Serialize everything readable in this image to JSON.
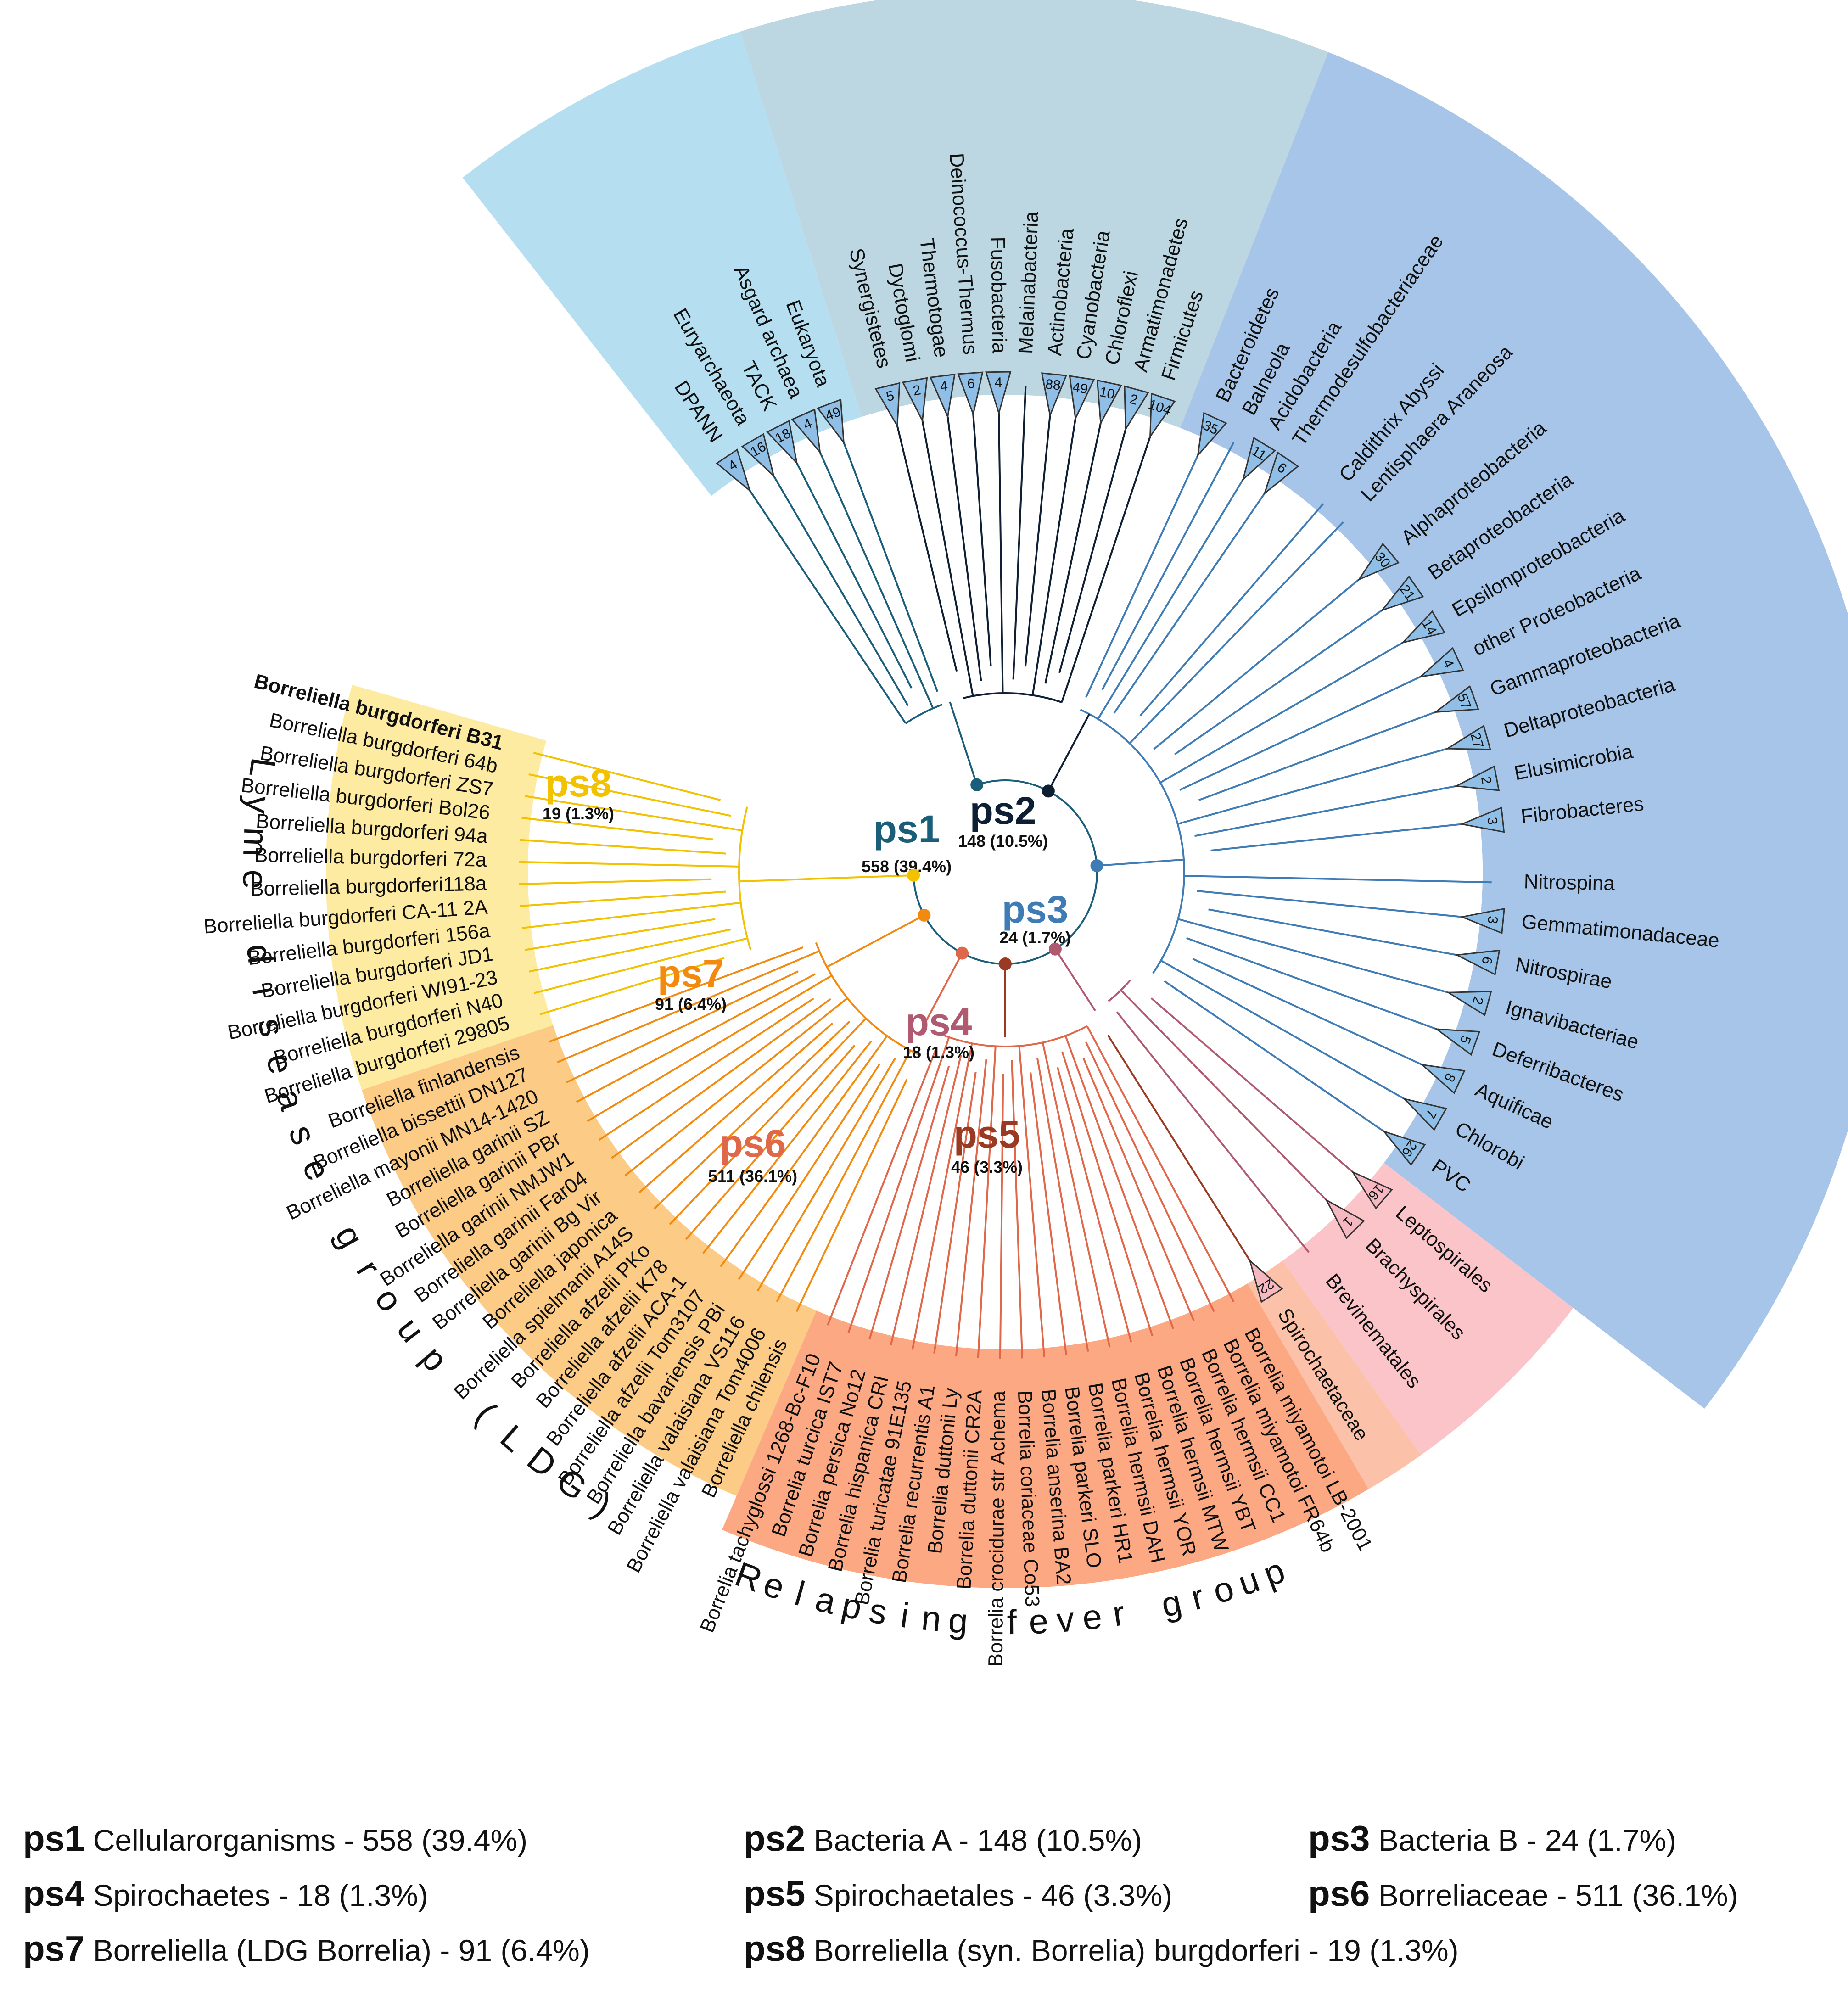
{
  "tree": {
    "leaves": [
      {
        "label": "DPANN",
        "angle": -123.8,
        "clade": "ps1",
        "collapsed": 4
      },
      {
        "label": "Euryarchaeota",
        "angle": -120.3,
        "clade": "ps1",
        "collapsed": 16
      },
      {
        "label": "TACK",
        "angle": -117.0,
        "clade": "ps1",
        "collapsed": 18
      },
      {
        "label": "Asgard archaea",
        "angle": -113.8,
        "clade": "ps1",
        "collapsed": 4
      },
      {
        "label": "Eukaryota",
        "angle": -110.6,
        "clade": "ps1",
        "collapsed": 49
      },
      {
        "label": "Synergistetes",
        "angle": -103.6,
        "clade": "ps2",
        "collapsed": 5
      },
      {
        "label": "Dyctoglomi",
        "angle": -100.4,
        "clade": "ps2",
        "collapsed": 2
      },
      {
        "label": "Thermotogae",
        "angle": -97.2,
        "clade": "ps2",
        "collapsed": 4
      },
      {
        "label": "Deinococcus-Thermus",
        "angle": -94.0,
        "clade": "ps2",
        "collapsed": 6
      },
      {
        "label": "Fusobacteria",
        "angle": -90.8,
        "clade": "ps2",
        "collapsed": 4
      },
      {
        "label": "Melainabacteria",
        "angle": -87.6,
        "clade": "ps2",
        "collapsed": null
      },
      {
        "label": "Actinobacteria",
        "angle": -84.4,
        "clade": "ps2",
        "collapsed": 88
      },
      {
        "label": "Cyanobacteria",
        "angle": -81.2,
        "clade": "ps2",
        "collapsed": 49
      },
      {
        "label": "Chloroflexi",
        "angle": -78.0,
        "clade": "ps2",
        "collapsed": 10
      },
      {
        "label": "Armatimonadetes",
        "angle": -74.8,
        "clade": "ps2",
        "collapsed": 2
      },
      {
        "label": "Firmicutes",
        "angle": -71.6,
        "clade": "ps2",
        "collapsed": 104
      },
      {
        "label": "Bacteroidetes",
        "angle": -65.2,
        "clade": "ps3",
        "collapsed": 35
      },
      {
        "label": "Balneola",
        "angle": -62.0,
        "clade": "ps3",
        "collapsed": null
      },
      {
        "label": "Acidobacteria",
        "angle": -58.8,
        "clade": "ps3",
        "collapsed": 11
      },
      {
        "label": "Thermodesulfobacteriaceae",
        "angle": -55.6,
        "clade": "ps3",
        "collapsed": 6
      },
      {
        "label": "Caldithrix Abyssi",
        "angle": -49.2,
        "clade": "ps3",
        "collapsed": null
      },
      {
        "label": "Lentisphaera Araneosa",
        "angle": -46.0,
        "clade": "ps3",
        "collapsed": null
      },
      {
        "label": "Alphaproteobacteria",
        "angle": -39.6,
        "clade": "ps3",
        "collapsed": 30
      },
      {
        "label": "Betaproteobacteria",
        "angle": -34.8,
        "clade": "ps3",
        "collapsed": 21
      },
      {
        "label": "Epsilonproteobacteria",
        "angle": -30.0,
        "clade": "ps3",
        "collapsed": 14
      },
      {
        "label": "other Proteobacteria",
        "angle": -25.2,
        "clade": "ps3",
        "collapsed": 4
      },
      {
        "label": "Gammaproteobacteria",
        "angle": -20.4,
        "clade": "ps3",
        "collapsed": 57
      },
      {
        "label": "Deltaproteobacteria",
        "angle": -15.6,
        "clade": "ps3",
        "collapsed": 27
      },
      {
        "label": "Elusimicrobia",
        "angle": -10.8,
        "clade": "ps3",
        "collapsed": 2
      },
      {
        "label": "Fibrobacteres",
        "angle": -6.0,
        "clade": "ps3",
        "collapsed": 3
      },
      {
        "label": "Nitrospina",
        "angle": 1.2,
        "clade": "ps3",
        "collapsed": null
      },
      {
        "label": "Gemmatimonadaceae",
        "angle": 5.6,
        "clade": "ps3",
        "collapsed": 3
      },
      {
        "label": "Nitrospirae",
        "angle": 10.4,
        "clade": "ps3",
        "collapsed": 6
      },
      {
        "label": "Ignavibacteriae",
        "angle": 15.2,
        "clade": "ps3",
        "collapsed": 2
      },
      {
        "label": "Deferribacteres",
        "angle": 20.0,
        "clade": "ps3",
        "collapsed": 5
      },
      {
        "label": "Aquificae",
        "angle": 24.8,
        "clade": "ps3",
        "collapsed": 8
      },
      {
        "label": "Chlorobi",
        "angle": 29.6,
        "clade": "ps3",
        "collapsed": 7
      },
      {
        "label": "PVC",
        "angle": 34.4,
        "clade": "ps3",
        "collapsed": 26
      },
      {
        "label": "Leptospirales",
        "angle": 40.8,
        "clade": "ps4",
        "collapsed": 16
      },
      {
        "label": "Brachyspirales",
        "angle": 45.6,
        "clade": "ps4",
        "collapsed": 1
      },
      {
        "label": "Brevinematales",
        "angle": 51.4,
        "clade": "ps4",
        "collapsed": null
      },
      {
        "label": "Spirochaetaceae",
        "angle": 57.8,
        "clade": "ps5",
        "collapsed": 22
      },
      {
        "label": "Borrelia miyamotoi LB-2001",
        "angle": 62.0,
        "clade": "ps6",
        "collapsed": null
      },
      {
        "label": "Borrelia miyamotoi FR64b",
        "angle": 64.6,
        "clade": "ps6",
        "collapsed": null
      },
      {
        "label": "Borrelia hermsii CC1",
        "angle": 67.2,
        "clade": "ps6",
        "collapsed": null
      },
      {
        "label": "Borrelia hermsii YBT",
        "angle": 69.8,
        "clade": "ps6",
        "collapsed": null
      },
      {
        "label": "Borrelia hermsii MTW",
        "angle": 72.4,
        "clade": "ps6",
        "collapsed": null
      },
      {
        "label": "Borrelia hermsii YOR",
        "angle": 75.0,
        "clade": "ps6",
        "collapsed": null
      },
      {
        "label": "Borrelia hermsii DAH",
        "angle": 77.6,
        "clade": "ps6",
        "collapsed": null
      },
      {
        "label": "Borrelia parkeri HR1",
        "angle": 80.2,
        "clade": "ps6",
        "collapsed": null
      },
      {
        "label": "Borrelia parkeri SLO",
        "angle": 82.8,
        "clade": "ps6",
        "collapsed": null
      },
      {
        "label": "Borrelia anserina BA2",
        "angle": 85.4,
        "clade": "ps6",
        "collapsed": null
      },
      {
        "label": "Borrelia coriaceae Co53",
        "angle": 88.0,
        "clade": "ps6",
        "collapsed": null
      },
      {
        "label": "Borrelia crocidurae str Achema",
        "angle": 90.6,
        "clade": "ps6",
        "collapsed": null
      },
      {
        "label": "Borrelia duttonii CR2A",
        "angle": 93.2,
        "clade": "ps6",
        "collapsed": null
      },
      {
        "label": "Borrelia duttonii Ly",
        "angle": 95.8,
        "clade": "ps6",
        "collapsed": null
      },
      {
        "label": "Borrelia recurrentis A1",
        "angle": 98.4,
        "clade": "ps6",
        "collapsed": null
      },
      {
        "label": "Borrelia turicatae 91E135",
        "angle": 101.0,
        "clade": "ps6",
        "collapsed": null
      },
      {
        "label": "Borrelia hispanica CRI",
        "angle": 103.6,
        "clade": "ps6",
        "collapsed": null
      },
      {
        "label": "Borrelia persica No12",
        "angle": 106.2,
        "clade": "ps6",
        "collapsed": null
      },
      {
        "label": "Borrelia turcica IST7",
        "angle": 108.8,
        "clade": "ps6",
        "collapsed": null
      },
      {
        "label": "Borrelia tachyglossi 1268-Bc-F10",
        "angle": 111.4,
        "clade": "ps6",
        "collapsed": null
      },
      {
        "label": "Borreliella chilensis",
        "angle": 115.4,
        "clade": "ps7",
        "collapsed": null
      },
      {
        "label": "Borreliella valaisiana Tom4006",
        "angle": 118.0,
        "clade": "ps7",
        "collapsed": null
      },
      {
        "label": "Borreliella valaisiana VS116",
        "angle": 120.6,
        "clade": "ps7",
        "collapsed": null
      },
      {
        "label": "Borreliella bavariensis PBi",
        "angle": 123.2,
        "clade": "ps7",
        "collapsed": null
      },
      {
        "label": "Borreliella afzelii Tom3107",
        "angle": 125.8,
        "clade": "ps7",
        "collapsed": null
      },
      {
        "label": "Borreliella afzelii ACA-1",
        "angle": 128.4,
        "clade": "ps7",
        "collapsed": null
      },
      {
        "label": "Borreliella afzelii K78",
        "angle": 131.0,
        "clade": "ps7",
        "collapsed": null
      },
      {
        "label": "Borreliella afzelii PKo",
        "angle": 133.6,
        "clade": "ps7",
        "collapsed": null
      },
      {
        "label": "Borreliella spielmanii A14S",
        "angle": 136.2,
        "clade": "ps7",
        "collapsed": null
      },
      {
        "label": "Borreliella japonica",
        "angle": 138.8,
        "clade": "ps7",
        "collapsed": null
      },
      {
        "label": "Borreliella garinii Bg Vir",
        "angle": 141.4,
        "clade": "ps7",
        "collapsed": null
      },
      {
        "label": "Borreliella garinii Far04",
        "angle": 144.0,
        "clade": "ps7",
        "collapsed": null
      },
      {
        "label": "Borreliella garinii NMJW1",
        "angle": 146.6,
        "clade": "ps7",
        "collapsed": null
      },
      {
        "label": "Borreliella garinii PBr",
        "angle": 149.2,
        "clade": "ps7",
        "collapsed": null
      },
      {
        "label": "Borreliella garinii SZ",
        "angle": 151.8,
        "clade": "ps7",
        "collapsed": null
      },
      {
        "label": "Borreliella mayonii MN14-1420",
        "angle": 154.4,
        "clade": "ps7",
        "collapsed": null
      },
      {
        "label": "Borreliella bissettii DN127",
        "angle": 157.0,
        "clade": "ps7",
        "collapsed": null
      },
      {
        "label": "Borreliella finlandensis",
        "angle": 159.6,
        "clade": "ps7",
        "collapsed": null
      },
      {
        "label": "Borreliella burgdorferi 29805",
        "angle": 163.0,
        "clade": "ps8",
        "collapsed": null
      },
      {
        "label": "Borreliella burgdorferi N40",
        "angle": 165.6,
        "clade": "ps8",
        "collapsed": null
      },
      {
        "label": "Borreliella burgdorferi WI91-23",
        "angle": 168.2,
        "clade": "ps8",
        "collapsed": null
      },
      {
        "label": "Borreliella burgdorferi JD1",
        "angle": 170.8,
        "clade": "ps8",
        "collapsed": null
      },
      {
        "label": "Borreliella burgdorferi 156a",
        "angle": 173.4,
        "clade": "ps8",
        "collapsed": null
      },
      {
        "label": "Borreliella burgdorferi CA-11 2A",
        "angle": 176.0,
        "clade": "ps8",
        "collapsed": null
      },
      {
        "label": "Borreliella burgdorferi118a",
        "angle": 178.6,
        "clade": "ps8",
        "collapsed": null
      },
      {
        "label": "Borreliella burgdorferi 72a",
        "angle": 181.2,
        "clade": "ps8",
        "collapsed": null
      },
      {
        "label": "Borreliella burgdorferi 94a",
        "angle": 183.8,
        "clade": "ps8",
        "collapsed": null
      },
      {
        "label": "Borreliella burgdorferi Bol26",
        "angle": 186.4,
        "clade": "ps8",
        "collapsed": null
      },
      {
        "label": "Borreliella burgdorferi ZS7",
        "angle": 189.0,
        "clade": "ps8",
        "collapsed": null
      },
      {
        "label": "Borreliella burgdorferi 64b",
        "angle": 191.6,
        "clade": "ps8",
        "collapsed": null
      },
      {
        "label": "Borreliella burgdorferi B31",
        "angle": 194.2,
        "clade": "ps8",
        "collapsed": null,
        "bold": true
      }
    ],
    "nodes": [
      {
        "id": "ps1",
        "label": "ps1",
        "count": "558 (39.4%)",
        "color": "#1b5e7a"
      },
      {
        "id": "ps2",
        "label": "ps2",
        "count": "148 (10.5%)",
        "color": "#0f1f33"
      },
      {
        "id": "ps3",
        "label": "ps3",
        "count": "24 (1.7%)",
        "color": "#3f7cb5"
      },
      {
        "id": "ps4",
        "label": "ps4",
        "count": "18 (1.3%)",
        "color": "#b05a72"
      },
      {
        "id": "ps5",
        "label": "ps5",
        "count": "46 (3.3%)",
        "color": "#9b3a22"
      },
      {
        "id": "ps6",
        "label": "ps6",
        "count": "511 (36.1%)",
        "color": "#e0684a"
      },
      {
        "id": "ps7",
        "label": "ps7",
        "count": "91 (6.4%)",
        "color": "#f28a10"
      },
      {
        "id": "ps8",
        "label": "ps8",
        "count": "19 (1.3%)",
        "color": "#f2c200"
      }
    ],
    "groups": [
      {
        "id": "ld",
        "label": "Lyme disease group (LDG)"
      },
      {
        "id": "rf",
        "label": "Relapsing fever group"
      }
    ]
  },
  "legend": [
    {
      "key": "ps1",
      "text": "Cellularorganisms - 558 (39.4%)"
    },
    {
      "key": "ps2",
      "text": "Bacteria A - 148 (10.5%)"
    },
    {
      "key": "ps3",
      "text": "Bacteria B - 24 (1.7%)"
    },
    {
      "key": "ps4",
      "text": "Spirochaetes - 18 (1.3%)"
    },
    {
      "key": "ps5",
      "text": "Spirochaetales - 46 (3.3%)"
    },
    {
      "key": "ps6",
      "text": "Borreliaceae - 511 (36.1%)"
    },
    {
      "key": "ps7",
      "text": "Borreliella (LDG Borrelia) - 91 (6.4%)"
    },
    {
      "key": "ps8",
      "text": "Borreliella (syn. Borrelia) burgdorferi - 19 (1.3%)"
    }
  ],
  "colors": {
    "bg_ps1": "#b5def0",
    "bg_ps2": "#bcd6e2",
    "bg_ps3": "#a7c5e9",
    "bg_ps4": "#fac4c9",
    "bg_ps5": "#fcc2a9",
    "bg_ps6": "#fba883",
    "bg_ps7": "#fccb86",
    "bg_ps8": "#fdeba1"
  }
}
